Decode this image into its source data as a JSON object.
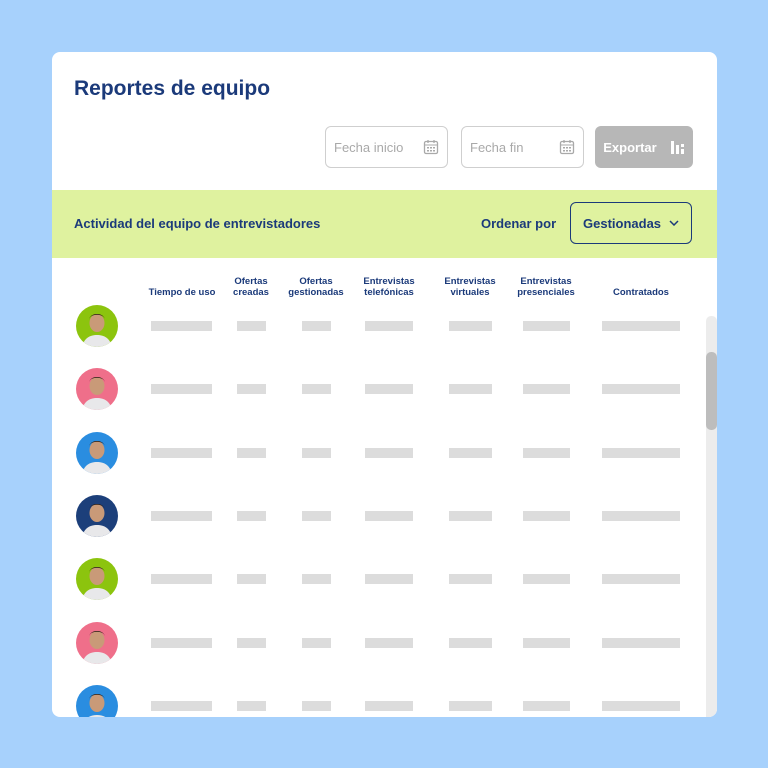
{
  "header": {
    "title": "Reportes de equipo"
  },
  "filters": {
    "start_placeholder": "Fecha inicio",
    "end_placeholder": "Fecha fin",
    "export_label": "Exportar"
  },
  "band": {
    "title": "Actividad del equipo de entrevistadores",
    "order_label": "Ordenar por",
    "order_value": "Gestionadas"
  },
  "columns": [
    [
      "",
      "Tiempo de uso"
    ],
    [
      "Ofertas",
      "creadas"
    ],
    [
      "Ofertas",
      "gestionadas"
    ],
    [
      "Entrevistas",
      "telefónicas"
    ],
    [
      "Entrevistas",
      "virtuales"
    ],
    [
      "Entrevistas",
      "presenciales"
    ],
    [
      "",
      "Contratados"
    ]
  ],
  "rows": [
    {
      "avatar_color": "#8cc40e"
    },
    {
      "avatar_color": "#ef6f8a"
    },
    {
      "avatar_color": "#2a8de0"
    },
    {
      "avatar_color": "#1c3f7a"
    },
    {
      "avatar_color": "#8cc40e"
    },
    {
      "avatar_color": "#ef6f8a"
    },
    {
      "avatar_color": "#2a8de0"
    }
  ],
  "colors": {
    "accent": "#1b3a7a",
    "band": "#dff29f",
    "background": "#a7d1fc"
  }
}
